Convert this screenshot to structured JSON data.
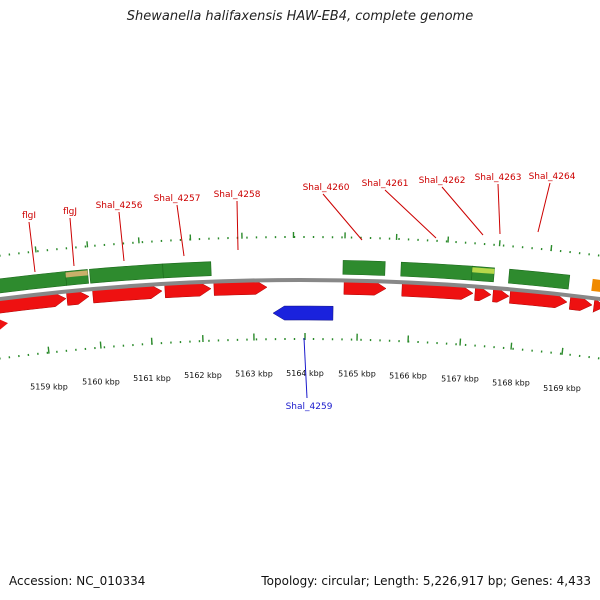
{
  "title": "Shewanella halifaxensis HAW-EB4, complete genome",
  "footer": {
    "accession": "Accession: NC_010334",
    "summary": "Topology: circular; Length: 5,226,917 bp; Genes: 4,433"
  },
  "colors": {
    "forward_cds": "#ee1111",
    "reverse_cds": "#1a22dd",
    "gene_track": "#2e8b2e",
    "backbone": "#888888",
    "ticks": "#2a8a2a",
    "label_forward": "#cc0000",
    "label_reverse": "#1a1acc",
    "other_feature": "#f08a00"
  },
  "axis_labels": [
    "5159 kbp",
    "5160 kbp",
    "5161 kbp",
    "5162 kbp",
    "5163 kbp",
    "5164 kbp",
    "5165 kbp",
    "5166 kbp",
    "5167 kbp",
    "5168 kbp",
    "5169 kbp"
  ],
  "gene_labels": [
    {
      "text": "flgI",
      "strand": "forward"
    },
    {
      "text": "flgJ",
      "strand": "forward"
    },
    {
      "text": "Shal_4256",
      "strand": "forward"
    },
    {
      "text": "Shal_4257",
      "strand": "forward"
    },
    {
      "text": "Shal_4258",
      "strand": "forward"
    },
    {
      "text": "Shal_4260",
      "strand": "forward"
    },
    {
      "text": "Shal_4261",
      "strand": "forward"
    },
    {
      "text": "Shal_4262",
      "strand": "forward"
    },
    {
      "text": "Shal_4263",
      "strand": "forward"
    },
    {
      "text": "Shal_4264",
      "strand": "forward"
    },
    {
      "text": "Shal_4259",
      "strand": "reverse"
    }
  ]
}
